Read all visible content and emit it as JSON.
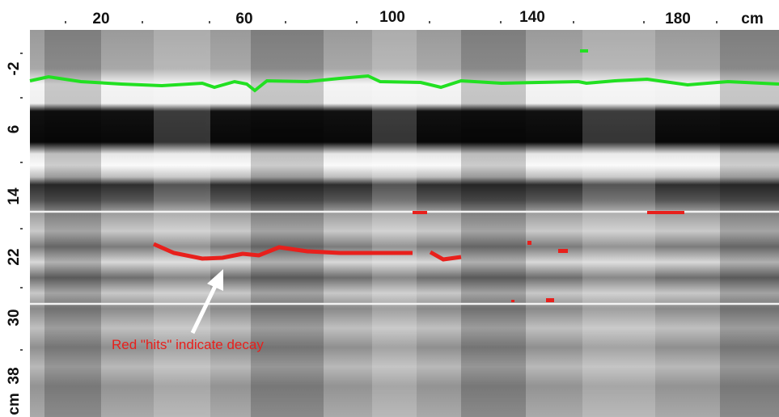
{
  "x_axis": {
    "labels": [
      "20",
      "60",
      "100",
      "140",
      "180",
      "cm"
    ]
  },
  "y_axis": {
    "labels": [
      "-2",
      "6",
      "14",
      "22",
      "30",
      "38",
      "cm"
    ]
  },
  "annotation": "Red \"hits\" indicate decay"
}
